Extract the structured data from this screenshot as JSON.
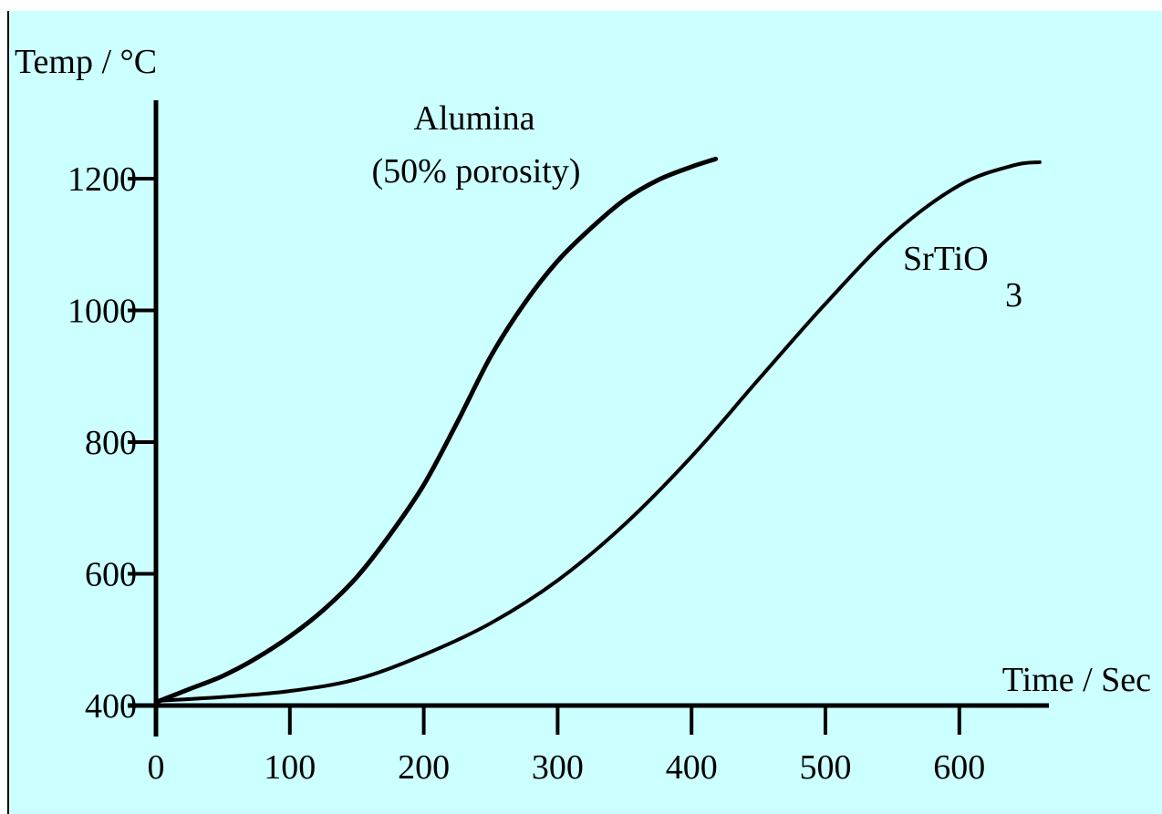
{
  "chart_data": {
    "type": "line",
    "title": "",
    "ylabel": "Temp / °C",
    "xlabel": "Time / Sec",
    "xlim": [
      0,
      670
    ],
    "ylim": [
      400,
      1300
    ],
    "x_ticks": [
      "0",
      "100",
      "200",
      "300",
      "400",
      "500",
      "600"
    ],
    "y_ticks": [
      "400",
      "600",
      "800",
      "1000",
      "1200"
    ],
    "grid": false,
    "legend": "none",
    "series": [
      {
        "name": "Alumina",
        "label_line1": "Alumina",
        "label_line2": "(50% porosity)",
        "x": [
          0,
          25,
          50,
          75,
          100,
          125,
          150,
          175,
          200,
          225,
          250,
          275,
          300,
          325,
          350,
          375,
          400,
          418
        ],
        "y": [
          405,
          425,
          445,
          472,
          505,
          545,
          595,
          660,
          735,
          830,
          930,
          1010,
          1075,
          1125,
          1168,
          1198,
          1218,
          1230
        ]
      },
      {
        "name": "SrTiO3",
        "label_main": "SrTiO",
        "label_sub": "3",
        "x": [
          0,
          50,
          100,
          150,
          200,
          250,
          300,
          350,
          400,
          450,
          500,
          550,
          600,
          640,
          660
        ],
        "y": [
          407,
          413,
          422,
          440,
          477,
          525,
          590,
          675,
          778,
          895,
          1010,
          1115,
          1190,
          1220,
          1225
        ]
      }
    ]
  }
}
